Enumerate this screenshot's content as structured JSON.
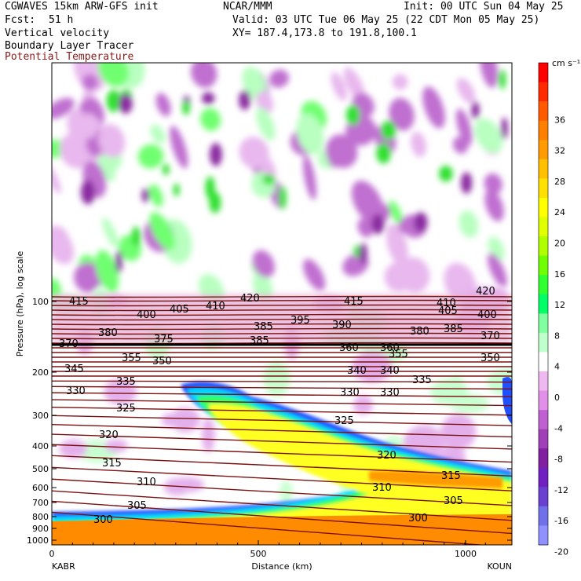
{
  "header": {
    "model": "CGWAVES 15km ARW-GFS init",
    "org": "NCAR/MMM",
    "init": "Init: 00 UTC Sun 04 May 25",
    "fcst_label": "Fcst:",
    "fcst_value": "51 h",
    "valid": "Valid: 03 UTC Tue 06 May 25 (22 CDT Mon 05 May 25)",
    "field1": "Vertical velocity",
    "field2": "Boundary Layer Tracer",
    "field3": "Potential Temperature",
    "xy": "XY= 187.4,173.8 to 191.8,100.1"
  },
  "colors": {
    "theta_contour": "#7a1010",
    "field3_text": "#8b1a1a"
  },
  "chart_data": {
    "type": "heatmap",
    "xlabel": "Distance (km)",
    "ylabel": "Pressure (hPa), log scale",
    "x_ticks": [
      "0",
      "500",
      "1000"
    ],
    "y_ticks": [
      "100",
      "200",
      "300",
      "400",
      "500",
      "600",
      "700",
      "800",
      "900",
      "1000"
    ],
    "left_endpoint": "KABR",
    "right_endpoint": "KOUN",
    "colorbar": {
      "unit": "cm s⁻¹",
      "ticks": [
        "36",
        "32",
        "28",
        "24",
        "20",
        "16",
        "12",
        "8",
        "4",
        "0",
        "-4",
        "-8",
        "-12",
        "-16",
        "-20"
      ],
      "colors": [
        "#ff0000",
        "#ff2a00",
        "#ff5a00",
        "#ff8000",
        "#ff9a00",
        "#ffc000",
        "#ffe000",
        "#ffff00",
        "#e0ff00",
        "#b0ff00",
        "#70ff00",
        "#30ff30",
        "#00ff66",
        "#7fff9f",
        "#bfffcc",
        "#ffffff",
        "#f0b8f0",
        "#e090e8",
        "#c060d0",
        "#a040b8",
        "#8020a0",
        "#7020c0",
        "#6a40d0",
        "#7070e8",
        "#9090ff"
      ]
    },
    "theta_labels": [
      "415",
      "410",
      "420",
      "415",
      "405",
      "410",
      "420",
      "400",
      "405",
      "395",
      "400",
      "380",
      "385",
      "390",
      "380",
      "385",
      "370",
      "375",
      "385",
      "360",
      "360",
      "370",
      "355",
      "355",
      "345",
      "350",
      "340",
      "340",
      "350",
      "335",
      "335",
      "330",
      "330",
      "330",
      "325",
      "325",
      "320",
      "320",
      "315",
      "315",
      "310",
      "310",
      "305",
      "305",
      "300",
      "300"
    ],
    "grid": false
  }
}
